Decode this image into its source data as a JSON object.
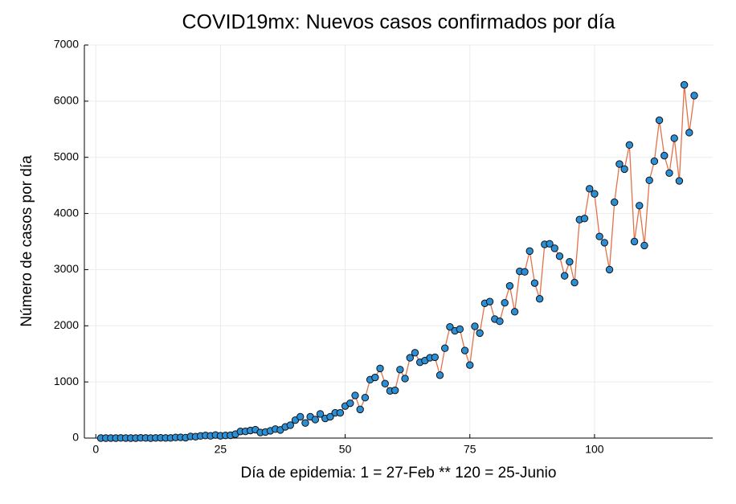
{
  "chart_data": {
    "type": "line",
    "title": "COVID19mx: Nuevos casos confirmados por día",
    "x_label": "Día de epidemia: 1 = 27-Feb ** 120 = 25-Junio",
    "y_label": "Número de casos por día",
    "x": [
      1,
      2,
      3,
      4,
      5,
      6,
      7,
      8,
      9,
      10,
      11,
      12,
      13,
      14,
      15,
      16,
      17,
      18,
      19,
      20,
      21,
      22,
      23,
      24,
      25,
      26,
      27,
      28,
      29,
      30,
      31,
      32,
      33,
      34,
      35,
      36,
      37,
      38,
      39,
      40,
      41,
      42,
      43,
      44,
      45,
      46,
      47,
      48,
      49,
      50,
      51,
      52,
      53,
      54,
      55,
      56,
      57,
      58,
      59,
      60,
      61,
      62,
      63,
      64,
      65,
      66,
      67,
      68,
      69,
      70,
      71,
      72,
      73,
      74,
      75,
      76,
      77,
      78,
      79,
      80,
      81,
      82,
      83,
      84,
      85,
      86,
      87,
      88,
      89,
      90,
      91,
      92,
      93,
      94,
      95,
      96,
      97,
      98,
      99,
      100,
      101,
      102,
      103,
      104,
      105,
      106,
      107,
      108,
      109,
      110,
      111,
      112,
      113,
      114,
      115,
      116,
      117,
      118,
      119,
      120
    ],
    "series": [
      {
        "name": "Nuevos casos",
        "color": "#e2724a",
        "marker_color": "#2b8fd6",
        "values": [
          0,
          0,
          1,
          0,
          2,
          1,
          0,
          0,
          4,
          2,
          0,
          3,
          5,
          3,
          2,
          12,
          14,
          7,
          29,
          25,
          38,
          47,
          40,
          55,
          41,
          48,
          50,
          70,
          118,
          120,
          135,
          150,
          100,
          108,
          130,
          160,
          145,
          200,
          230,
          320,
          380,
          270,
          380,
          330,
          430,
          350,
          380,
          450,
          450,
          570,
          620,
          760,
          510,
          720,
          1040,
          1080,
          1240,
          970,
          840,
          850,
          1220,
          1060,
          1430,
          1520,
          1350,
          1380,
          1430,
          1440,
          1120,
          1600,
          1980,
          1910,
          1940,
          1560,
          1300,
          1990,
          1870,
          2400,
          2430,
          2120,
          2080,
          2410,
          2710,
          2250,
          2970,
          2960,
          3330,
          2760,
          2480,
          3450,
          3460,
          3380,
          3240,
          2890,
          3140,
          2770,
          3890,
          3910,
          4440,
          4350,
          3590,
          3480,
          3000,
          4200,
          4880,
          4790,
          5220,
          3500,
          4140,
          3430,
          4590,
          4930,
          5660,
          5030,
          4720,
          5340,
          4580,
          6290,
          5440,
          6100
        ]
      }
    ],
    "xlim": [
      -2.3,
      123.7
    ],
    "ylim": [
      0,
      7000
    ],
    "xticks": [
      0,
      25,
      50,
      75,
      100
    ],
    "yticks": [
      0,
      1000,
      2000,
      3000,
      4000,
      5000,
      6000,
      7000
    ],
    "grid": true
  }
}
